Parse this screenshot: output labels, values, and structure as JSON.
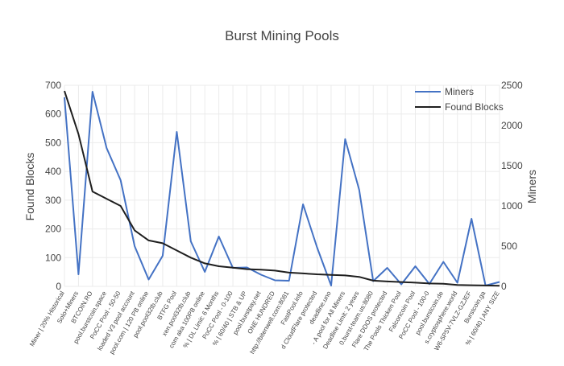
{
  "chart_data": {
    "type": "line",
    "title": "Burst Mining Pools",
    "y_left_label": "Found Blocks",
    "y_right_label": "Miners",
    "y_left_ticks": [
      0,
      100,
      200,
      300,
      400,
      500,
      600,
      700
    ],
    "y_right_ticks": [
      0,
      500,
      1000,
      1500,
      2000,
      2500
    ],
    "y_left_range": [
      0,
      700
    ],
    "y_right_range": [
      0,
      2500
    ],
    "legend_position": "top-right",
    "grid": true,
    "categories": [
      "Miner | 20% Historical",
      "Solo+Miners",
      "BTCOIN.RO",
      "pool.burstcoin.space",
      "PoCC Pool - 50-50",
      "loaded V3 pool account",
      "pool.com | 120 PB online",
      "pool.pool32tb.club",
      "BTFG Pool",
      "xen.pool32tb.club",
      "com aka 100PB online",
      "% | DL Limit: 6 Months",
      "PoCC Pool - 0-100",
      "% | 60/40 | STB & UP",
      "pool.burstpay.net",
      "ONE HUNDRED",
      "http://bitenwell.com:8081",
      "FastPool.info",
      "d CloudFlare protected",
      "deadline.uno",
      "- A pool for All Miners",
      "Deadline Limit: 2 years",
      "0.burst-team.us:8080",
      "Flare DDOS protected",
      "The Pools Thicken Pool",
      "Falconcoin Pool",
      "PoCC Pool - 100-0",
      "pool.burstcoin.de",
      "s.cryptosphere.world",
      "W6-5P5V-7VLZ-GZJEF",
      "Burstcoin.ga",
      "% | 60/40 | ANY SIZE"
    ],
    "series": [
      {
        "name": "Miners",
        "axis": "right",
        "color": "#4472c4",
        "values": [
          2350,
          150,
          2420,
          1720,
          1320,
          500,
          85,
          380,
          1920,
          560,
          180,
          620,
          230,
          235,
          145,
          75,
          70,
          1020,
          485,
          10,
          1830,
          1200,
          65,
          230,
          25,
          250,
          30,
          305,
          45,
          840,
          10,
          55
        ]
      },
      {
        "name": "Found Blocks",
        "axis": "left",
        "color": "#1f1f1f",
        "values": [
          680,
          530,
          330,
          305,
          280,
          195,
          160,
          150,
          125,
          100,
          80,
          70,
          65,
          60,
          58,
          55,
          48,
          45,
          42,
          40,
          38,
          33,
          20,
          17,
          15,
          13,
          10,
          9,
          5,
          4,
          3,
          2
        ]
      }
    ]
  }
}
